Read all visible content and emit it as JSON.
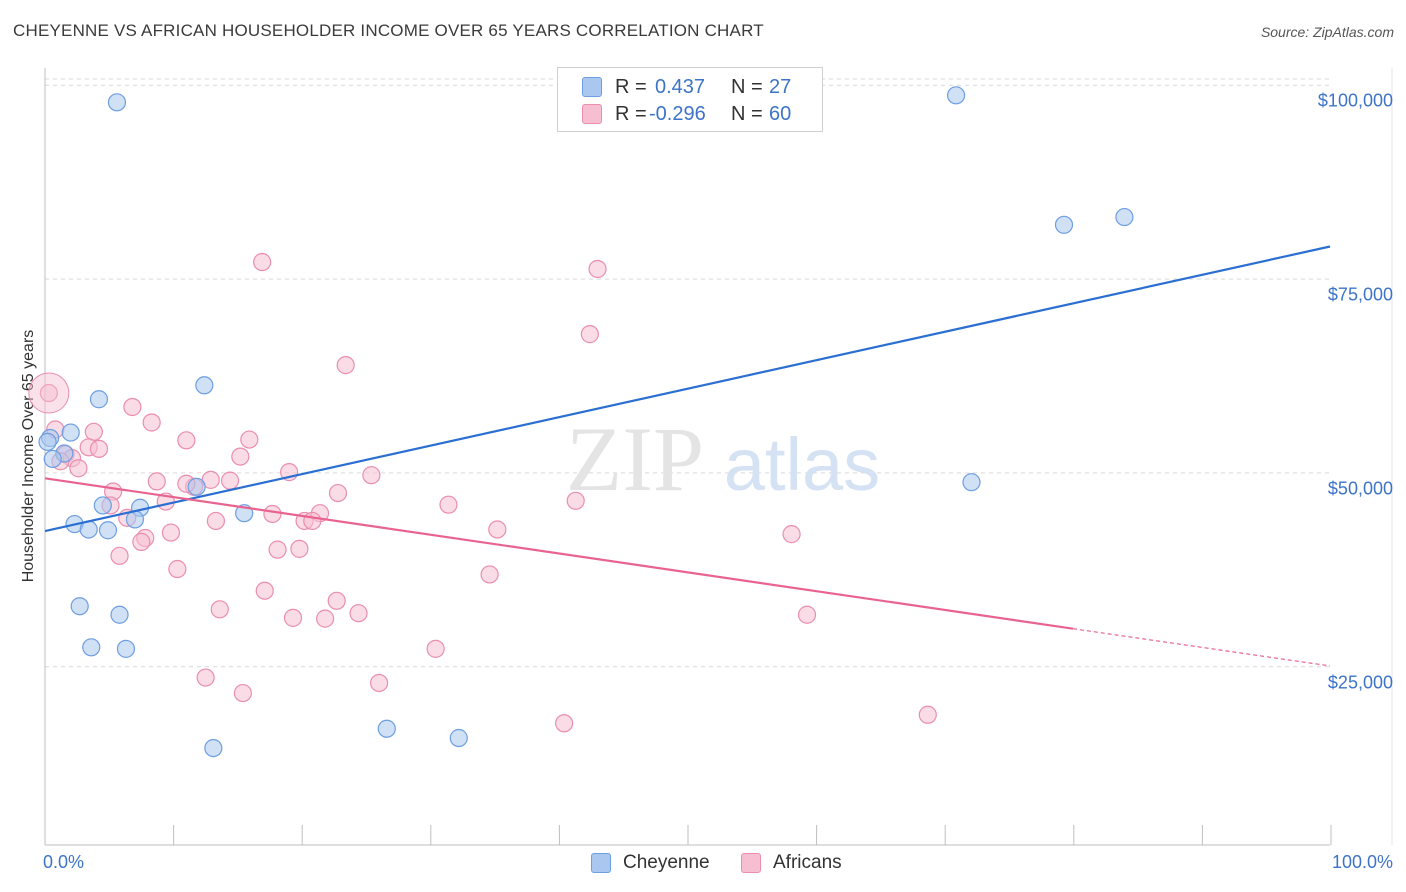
{
  "header": {
    "title": "CHEYENNE VS AFRICAN HOUSEHOLDER INCOME OVER 65 YEARS CORRELATION CHART",
    "source": "Source: ZipAtlas.com"
  },
  "legend": {
    "rows": [
      {
        "r_label": "R =",
        "r_value": "0.437",
        "n_label": "N =",
        "n_value": "27"
      },
      {
        "r_label": "R =",
        "r_value": "-0.296",
        "n_label": "N =",
        "n_value": "60"
      }
    ]
  },
  "bottom_legend": [
    "Cheyenne",
    "Africans"
  ],
  "watermark": {
    "zip": "ZIP",
    "atlas": "atlas"
  },
  "colors": {
    "cheyenne_fill": "#aac8ef",
    "cheyenne_stroke": "#6d9ee0",
    "cheyenne_line": "#2a6fd1",
    "africans_fill": "#f6bfd1",
    "africans_stroke": "#ea8daf",
    "africans_line": "#e8648f",
    "axis_text": "#3d74c9",
    "grid": "#d9d9d9"
  },
  "chart_data": {
    "type": "scatter",
    "title": "CHEYENNE VS AFRICAN HOUSEHOLDER INCOME OVER 65 YEARS CORRELATION CHART",
    "xlabel": "",
    "ylabel": "Householder Income Over 65 years",
    "xlim": [
      0,
      100
    ],
    "ylim": [
      2000,
      103000
    ],
    "x_tick_labels": [
      "0.0%",
      "100.0%"
    ],
    "y_ticks": [
      25000,
      50000,
      75000,
      100000
    ],
    "y_tick_labels": [
      "$25,000",
      "$50,000",
      "$75,000",
      "$100,000"
    ],
    "grid": true,
    "legend_position": "top-center",
    "series": [
      {
        "name": "Cheyenne",
        "r": 0.437,
        "n": 27,
        "trend": {
          "x0": 0,
          "y0": 42500,
          "x1": 100,
          "y1": 79200
        },
        "points": [
          {
            "x": 5.6,
            "y": 97800
          },
          {
            "x": 70.9,
            "y": 98700
          },
          {
            "x": 79.3,
            "y": 82000
          },
          {
            "x": 84.0,
            "y": 83000
          },
          {
            "x": 12.4,
            "y": 61300
          },
          {
            "x": 4.2,
            "y": 59500
          },
          {
            "x": 2.0,
            "y": 55200
          },
          {
            "x": 0.4,
            "y": 54500
          },
          {
            "x": 1.5,
            "y": 52500
          },
          {
            "x": 0.6,
            "y": 51800
          },
          {
            "x": 72.1,
            "y": 48800
          },
          {
            "x": 11.8,
            "y": 48200
          },
          {
            "x": 4.5,
            "y": 45800
          },
          {
            "x": 7.4,
            "y": 45500
          },
          {
            "x": 15.5,
            "y": 44800
          },
          {
            "x": 7.0,
            "y": 44000
          },
          {
            "x": 2.3,
            "y": 43400
          },
          {
            "x": 3.4,
            "y": 42700
          },
          {
            "x": 4.9,
            "y": 42600
          },
          {
            "x": 2.7,
            "y": 32800
          },
          {
            "x": 5.8,
            "y": 31700
          },
          {
            "x": 3.6,
            "y": 27500
          },
          {
            "x": 6.3,
            "y": 27300
          },
          {
            "x": 26.6,
            "y": 17000
          },
          {
            "x": 32.2,
            "y": 15800
          },
          {
            "x": 13.1,
            "y": 14500
          },
          {
            "x": 0.2,
            "y": 54000
          }
        ]
      },
      {
        "name": "Africans",
        "r": -0.296,
        "n": 60,
        "trend": {
          "x0": 0,
          "y0": 49300,
          "x1": 80,
          "y1": 29900,
          "dashed_to_x": 100,
          "dashed_to_y": 25100
        },
        "points": [
          {
            "x": 0.3,
            "y": 60300
          },
          {
            "x": 0.8,
            "y": 55600
          },
          {
            "x": 16.9,
            "y": 77200
          },
          {
            "x": 43.0,
            "y": 76300
          },
          {
            "x": 42.4,
            "y": 67900
          },
          {
            "x": 23.4,
            "y": 63900
          },
          {
            "x": 6.8,
            "y": 58500
          },
          {
            "x": 8.3,
            "y": 56500
          },
          {
            "x": 3.8,
            "y": 55300
          },
          {
            "x": 11.0,
            "y": 54200
          },
          {
            "x": 15.9,
            "y": 54300
          },
          {
            "x": 3.4,
            "y": 53300
          },
          {
            "x": 4.2,
            "y": 53100
          },
          {
            "x": 1.6,
            "y": 52400
          },
          {
            "x": 2.1,
            "y": 51900
          },
          {
            "x": 15.2,
            "y": 52100
          },
          {
            "x": 2.6,
            "y": 50600
          },
          {
            "x": 19.0,
            "y": 50100
          },
          {
            "x": 25.4,
            "y": 49700
          },
          {
            "x": 8.7,
            "y": 48900
          },
          {
            "x": 12.9,
            "y": 49100
          },
          {
            "x": 14.4,
            "y": 49000
          },
          {
            "x": 11.6,
            "y": 48200
          },
          {
            "x": 5.3,
            "y": 47600
          },
          {
            "x": 22.8,
            "y": 47400
          },
          {
            "x": 11.0,
            "y": 48600
          },
          {
            "x": 41.3,
            "y": 46400
          },
          {
            "x": 9.4,
            "y": 46300
          },
          {
            "x": 31.4,
            "y": 45900
          },
          {
            "x": 5.1,
            "y": 45800
          },
          {
            "x": 21.4,
            "y": 44800
          },
          {
            "x": 17.7,
            "y": 44700
          },
          {
            "x": 6.4,
            "y": 44200
          },
          {
            "x": 13.3,
            "y": 43800
          },
          {
            "x": 20.2,
            "y": 43800
          },
          {
            "x": 20.8,
            "y": 43800
          },
          {
            "x": 35.2,
            "y": 42700
          },
          {
            "x": 9.8,
            "y": 42300
          },
          {
            "x": 58.1,
            "y": 42100
          },
          {
            "x": 7.8,
            "y": 41600
          },
          {
            "x": 7.5,
            "y": 41100
          },
          {
            "x": 18.1,
            "y": 40100
          },
          {
            "x": 19.8,
            "y": 40200
          },
          {
            "x": 5.8,
            "y": 39300
          },
          {
            "x": 10.3,
            "y": 37600
          },
          {
            "x": 34.6,
            "y": 36900
          },
          {
            "x": 17.1,
            "y": 34800
          },
          {
            "x": 22.7,
            "y": 33500
          },
          {
            "x": 13.6,
            "y": 32400
          },
          {
            "x": 24.4,
            "y": 31900
          },
          {
            "x": 59.3,
            "y": 31700
          },
          {
            "x": 19.3,
            "y": 31300
          },
          {
            "x": 21.8,
            "y": 31200
          },
          {
            "x": 30.4,
            "y": 27300
          },
          {
            "x": 12.5,
            "y": 23600
          },
          {
            "x": 26.0,
            "y": 22900
          },
          {
            "x": 15.4,
            "y": 21600
          },
          {
            "x": 68.7,
            "y": 18800
          },
          {
            "x": 40.4,
            "y": 17700
          },
          {
            "x": 1.2,
            "y": 51500
          }
        ]
      }
    ]
  }
}
